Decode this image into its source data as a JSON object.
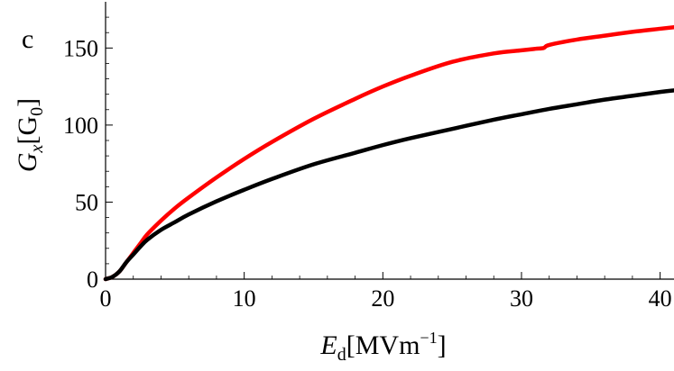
{
  "panel_label": "c",
  "chart_data": {
    "type": "line",
    "xlabel": {
      "main": "E",
      "sub": "d",
      "unit_pre": "[MVm",
      "unit_exp": "−1",
      "unit_post": "]"
    },
    "ylabel": {
      "main": "G",
      "sub": "x",
      "unit_pre": "[G",
      "unit_sub": "0",
      "unit_post": "]"
    },
    "xlim": [
      0,
      41
    ],
    "ylim": [
      0,
      180
    ],
    "xticks": [
      0,
      10,
      20,
      30,
      40
    ],
    "yticks": [
      0,
      50,
      100,
      150
    ],
    "grid": false,
    "series": [
      {
        "color": "#ff0000",
        "x": [
          0,
          0.5,
          1,
          1.5,
          2,
          2.5,
          3,
          4,
          5,
          6,
          8,
          10,
          12,
          15,
          18,
          20,
          22,
          25,
          28,
          30,
          31,
          31.6,
          32,
          34,
          36,
          38,
          40,
          41
        ],
        "y": [
          0,
          1.5,
          5,
          11,
          17,
          23,
          29,
          38,
          46,
          53,
          66,
          78,
          89,
          104,
          117,
          125,
          132,
          141,
          146.5,
          148.5,
          149.5,
          150,
          152,
          155.5,
          158,
          160.5,
          162.5,
          163.5
        ]
      },
      {
        "color": "#000000",
        "x": [
          0,
          0.5,
          1,
          1.5,
          2,
          2.5,
          3,
          4,
          5,
          6,
          8,
          10,
          12,
          15,
          18,
          20,
          22,
          25,
          28,
          30,
          32,
          34,
          36,
          38,
          40,
          41
        ],
        "y": [
          0,
          1.5,
          5,
          11,
          16,
          21,
          25.5,
          32,
          37,
          42,
          50.5,
          58,
          65,
          74.5,
          82,
          87,
          91.5,
          97.5,
          103.5,
          107,
          110.5,
          113.5,
          116.5,
          119,
          121.5,
          122.5
        ]
      }
    ]
  }
}
